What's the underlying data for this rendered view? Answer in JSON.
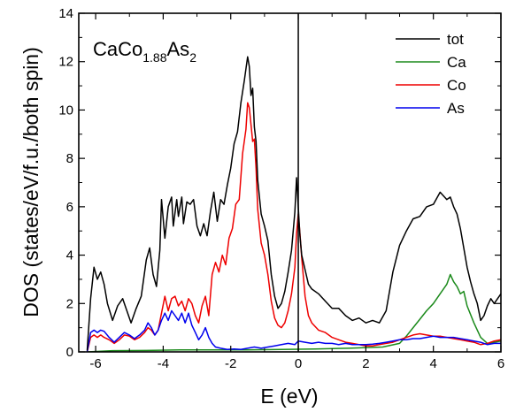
{
  "chart_data": {
    "type": "line",
    "title": "",
    "xlabel": "E (eV)",
    "ylabel": "DOS (states/eV/f.u./both spin)",
    "xlim": [
      -6.5,
      6
    ],
    "ylim": [
      0,
      14
    ],
    "xticks": [
      -6,
      -4,
      -2,
      0,
      2,
      4,
      6
    ],
    "xtick_labels": [
      "-6",
      "-4",
      "-2",
      "0",
      "2",
      "4",
      "6"
    ],
    "yticks": [
      0,
      2,
      4,
      6,
      8,
      10,
      12,
      14
    ],
    "ytick_labels": [
      "0",
      "2",
      "4",
      "6",
      "8",
      "10",
      "12",
      "14"
    ],
    "annotation": {
      "main": "CaCo",
      "sub1": "1.88",
      "mid": "As",
      "sub2": "2"
    },
    "fermi_line_x": 0,
    "legend": {
      "position": "top-right"
    },
    "series": [
      {
        "name": "tot",
        "color": "#000000",
        "x": [
          -6.25,
          -6.15,
          -6.05,
          -5.95,
          -5.85,
          -5.75,
          -5.65,
          -5.5,
          -5.35,
          -5.2,
          -5.05,
          -4.95,
          -4.8,
          -4.65,
          -4.5,
          -4.4,
          -4.3,
          -4.2,
          -4.1,
          -4.05,
          -3.95,
          -3.85,
          -3.75,
          -3.7,
          -3.6,
          -3.55,
          -3.45,
          -3.4,
          -3.3,
          -3.2,
          -3.1,
          -3.0,
          -2.9,
          -2.8,
          -2.7,
          -2.6,
          -2.5,
          -2.4,
          -2.3,
          -2.2,
          -2.1,
          -2.0,
          -1.9,
          -1.8,
          -1.7,
          -1.6,
          -1.5,
          -1.45,
          -1.4,
          -1.35,
          -1.3,
          -1.25,
          -1.2,
          -1.1,
          -1.0,
          -0.9,
          -0.8,
          -0.7,
          -0.6,
          -0.5,
          -0.4,
          -0.3,
          -0.2,
          -0.1,
          -0.05,
          0.0,
          0.05,
          0.1,
          0.2,
          0.3,
          0.4,
          0.6,
          0.8,
          1.0,
          1.2,
          1.4,
          1.6,
          1.8,
          2.0,
          2.2,
          2.4,
          2.6,
          2.8,
          3.0,
          3.2,
          3.4,
          3.6,
          3.8,
          4.0,
          4.2,
          4.4,
          4.5,
          4.6,
          4.7,
          4.8,
          4.9,
          5.0,
          5.1,
          5.2,
          5.3,
          5.4,
          5.5,
          5.6,
          5.7,
          5.8,
          5.9,
          6.0
        ],
        "y": [
          0.05,
          2.2,
          3.5,
          3.0,
          3.3,
          2.8,
          2.0,
          1.3,
          1.9,
          2.2,
          1.6,
          1.2,
          1.8,
          2.3,
          3.8,
          4.3,
          3.2,
          2.7,
          4.2,
          6.3,
          4.7,
          6.0,
          6.4,
          5.2,
          6.3,
          5.6,
          6.4,
          5.3,
          6.2,
          6.1,
          6.3,
          5.2,
          4.8,
          5.3,
          4.8,
          5.8,
          6.6,
          5.4,
          6.3,
          6.1,
          6.9,
          7.6,
          8.6,
          9.1,
          10.3,
          11.2,
          12.2,
          11.8,
          10.6,
          10.9,
          9.3,
          8.7,
          7.1,
          5.7,
          5.2,
          4.6,
          3.2,
          2.3,
          1.8,
          2.0,
          2.5,
          3.3,
          4.2,
          5.8,
          7.2,
          6.0,
          4.8,
          4.0,
          3.4,
          2.8,
          2.6,
          2.4,
          2.1,
          1.8,
          1.8,
          1.5,
          1.3,
          1.4,
          1.2,
          1.3,
          1.2,
          1.7,
          3.3,
          4.4,
          5.0,
          5.5,
          5.6,
          6.0,
          6.1,
          6.6,
          6.3,
          6.4,
          6.0,
          5.7,
          5.1,
          4.3,
          3.5,
          2.9,
          2.4,
          2.0,
          1.3,
          1.5,
          1.9,
          2.2,
          2.0,
          2.2,
          2.4
        ]
      },
      {
        "name": "Ca",
        "color": "#1b8a1b",
        "x": [
          -6.25,
          -5.5,
          -4.5,
          -3.5,
          -2.5,
          -1.5,
          -0.5,
          0.5,
          1.5,
          2.5,
          3.0,
          3.2,
          3.4,
          3.6,
          3.8,
          4.0,
          4.2,
          4.4,
          4.5,
          4.6,
          4.7,
          4.8,
          4.9,
          5.0,
          5.2,
          5.4,
          5.6,
          5.8,
          6.0
        ],
        "y": [
          0.0,
          0.05,
          0.06,
          0.08,
          0.08,
          0.08,
          0.1,
          0.12,
          0.15,
          0.2,
          0.35,
          0.65,
          1.0,
          1.35,
          1.7,
          2.0,
          2.4,
          2.8,
          3.2,
          2.9,
          2.7,
          2.4,
          2.5,
          1.9,
          1.2,
          0.6,
          0.35,
          0.4,
          0.45
        ]
      },
      {
        "name": "Co",
        "color": "#ee0000",
        "x": [
          -6.25,
          -6.15,
          -6.05,
          -5.95,
          -5.85,
          -5.75,
          -5.6,
          -5.45,
          -5.3,
          -5.15,
          -5.0,
          -4.85,
          -4.7,
          -4.55,
          -4.45,
          -4.35,
          -4.25,
          -4.15,
          -4.05,
          -3.95,
          -3.85,
          -3.75,
          -3.65,
          -3.55,
          -3.45,
          -3.35,
          -3.25,
          -3.15,
          -3.05,
          -2.95,
          -2.85,
          -2.75,
          -2.65,
          -2.55,
          -2.45,
          -2.35,
          -2.25,
          -2.15,
          -2.05,
          -1.95,
          -1.85,
          -1.75,
          -1.65,
          -1.55,
          -1.5,
          -1.45,
          -1.4,
          -1.35,
          -1.3,
          -1.25,
          -1.2,
          -1.1,
          -1.0,
          -0.9,
          -0.8,
          -0.7,
          -0.6,
          -0.5,
          -0.4,
          -0.3,
          -0.2,
          -0.1,
          -0.05,
          0.0,
          0.05,
          0.1,
          0.2,
          0.3,
          0.4,
          0.6,
          0.8,
          1.0,
          1.2,
          1.4,
          1.6,
          1.8,
          2.0,
          2.2,
          2.4,
          2.6,
          2.8,
          3.0,
          3.2,
          3.4,
          3.6,
          3.8,
          4.0,
          4.2,
          4.4,
          4.6,
          4.8,
          5.0,
          5.2,
          5.4,
          5.6,
          5.8,
          6.0
        ],
        "y": [
          0.0,
          0.6,
          0.7,
          0.6,
          0.7,
          0.6,
          0.5,
          0.35,
          0.5,
          0.7,
          0.65,
          0.5,
          0.6,
          0.8,
          1.0,
          0.9,
          0.7,
          0.9,
          1.6,
          2.3,
          1.7,
          2.2,
          2.3,
          1.9,
          2.1,
          1.7,
          2.2,
          2.0,
          1.5,
          1.2,
          1.9,
          2.3,
          1.5,
          3.2,
          3.7,
          3.3,
          4.0,
          3.6,
          4.7,
          5.1,
          6.1,
          6.3,
          8.2,
          9.2,
          10.3,
          10.1,
          9.4,
          8.7,
          8.8,
          7.6,
          5.9,
          4.5,
          4.0,
          3.2,
          2.1,
          1.4,
          1.1,
          1.0,
          1.2,
          1.7,
          2.4,
          3.5,
          4.9,
          5.7,
          4.9,
          3.9,
          2.3,
          1.5,
          1.2,
          0.9,
          0.8,
          0.6,
          0.5,
          0.4,
          0.35,
          0.3,
          0.25,
          0.25,
          0.3,
          0.35,
          0.4,
          0.5,
          0.6,
          0.7,
          0.75,
          0.7,
          0.65,
          0.65,
          0.6,
          0.55,
          0.5,
          0.45,
          0.4,
          0.3,
          0.35,
          0.45,
          0.5
        ]
      },
      {
        "name": "As",
        "color": "#0000ee",
        "x": [
          -6.25,
          -6.15,
          -6.05,
          -5.95,
          -5.85,
          -5.75,
          -5.6,
          -5.45,
          -5.3,
          -5.15,
          -5.0,
          -4.85,
          -4.7,
          -4.55,
          -4.45,
          -4.35,
          -4.25,
          -4.15,
          -4.05,
          -3.95,
          -3.85,
          -3.75,
          -3.65,
          -3.55,
          -3.45,
          -3.35,
          -3.25,
          -3.15,
          -3.05,
          -2.95,
          -2.85,
          -2.75,
          -2.65,
          -2.55,
          -2.45,
          -2.3,
          -2.1,
          -1.9,
          -1.7,
          -1.5,
          -1.3,
          -1.1,
          -0.9,
          -0.7,
          -0.5,
          -0.3,
          -0.1,
          0.0,
          0.2,
          0.4,
          0.6,
          0.8,
          1.0,
          1.2,
          1.4,
          1.6,
          1.8,
          2.0,
          2.2,
          2.4,
          2.6,
          2.8,
          3.0,
          3.2,
          3.4,
          3.6,
          3.8,
          4.0,
          4.2,
          4.4,
          4.6,
          4.8,
          5.0,
          5.2,
          5.4,
          5.6,
          5.8,
          6.0
        ],
        "y": [
          0.0,
          0.8,
          0.9,
          0.8,
          0.9,
          0.85,
          0.6,
          0.4,
          0.6,
          0.8,
          0.7,
          0.55,
          0.7,
          0.9,
          1.2,
          1.0,
          0.7,
          0.9,
          1.3,
          1.6,
          1.3,
          1.7,
          1.5,
          1.3,
          1.6,
          1.2,
          1.6,
          1.1,
          0.8,
          0.5,
          0.7,
          1.0,
          0.6,
          0.35,
          0.2,
          0.15,
          0.1,
          0.12,
          0.1,
          0.15,
          0.2,
          0.15,
          0.2,
          0.25,
          0.3,
          0.35,
          0.3,
          0.45,
          0.4,
          0.35,
          0.4,
          0.35,
          0.35,
          0.3,
          0.35,
          0.3,
          0.3,
          0.3,
          0.32,
          0.35,
          0.4,
          0.45,
          0.5,
          0.5,
          0.55,
          0.55,
          0.6,
          0.65,
          0.6,
          0.6,
          0.6,
          0.55,
          0.5,
          0.45,
          0.4,
          0.3,
          0.35,
          0.35
        ]
      }
    ]
  }
}
